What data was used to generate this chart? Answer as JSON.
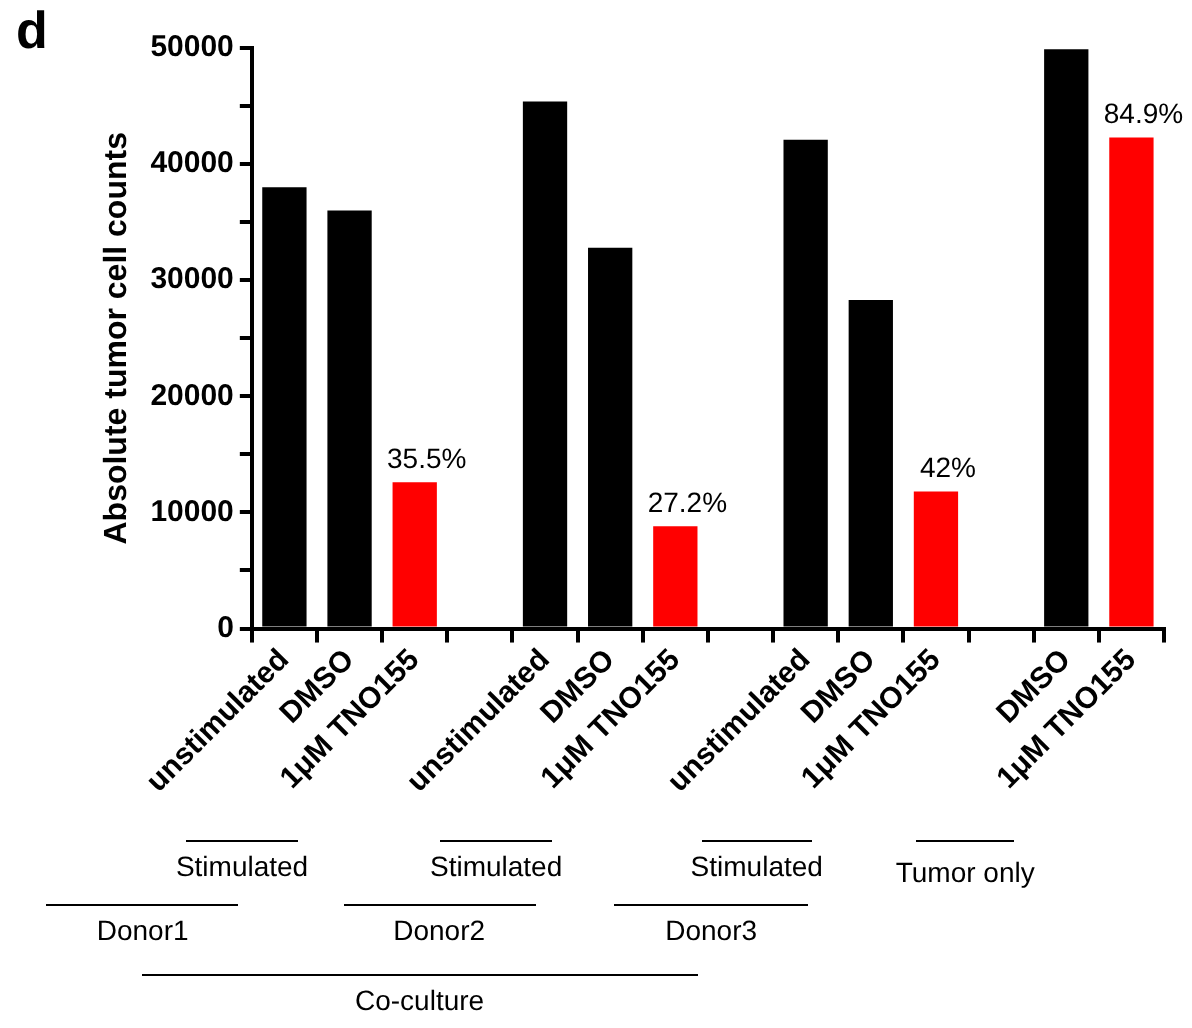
{
  "chart_data": {
    "type": "bar",
    "title": "d",
    "ylabel": "Absolute tumor cell counts",
    "categories": [
      "unstimulated",
      "DMSO",
      "1μM TNO155",
      null,
      "unstimulated",
      "DMSO",
      "1μM TNO155",
      null,
      "unstimulated",
      "DMSO",
      "1μM TNO155",
      null,
      "DMSO",
      "1μM TNO155"
    ],
    "values": [
      38000,
      36000,
      12600,
      null,
      45400,
      32800,
      8800,
      null,
      42100,
      28300,
      11800,
      null,
      49900,
      42300
    ],
    "colors": [
      "#000000",
      "#000000",
      "#ff0000",
      null,
      "#000000",
      "#000000",
      "#ff0000",
      null,
      "#000000",
      "#000000",
      "#ff0000",
      null,
      "#000000",
      "#ff0000"
    ],
    "ylim": [
      0,
      50000
    ],
    "yticks": [
      0,
      {
        "value": 5000,
        "label": null
      },
      10000,
      {
        "value": 15000,
        "label": null
      },
      20000,
      {
        "value": 25000,
        "label": null
      },
      30000,
      {
        "value": 35000,
        "label": null
      },
      40000,
      {
        "value": 45000,
        "label": null
      },
      50000
    ],
    "grid": false,
    "legend": false,
    "annotations": [
      "35.5%",
      "27.2%",
      "42%",
      "84.9%",
      "Stimulated",
      "Stimulated",
      "Stimulated",
      "Tumor only",
      "Donor1",
      "Donor2",
      "Donor3",
      "Co-culture"
    ]
  }
}
